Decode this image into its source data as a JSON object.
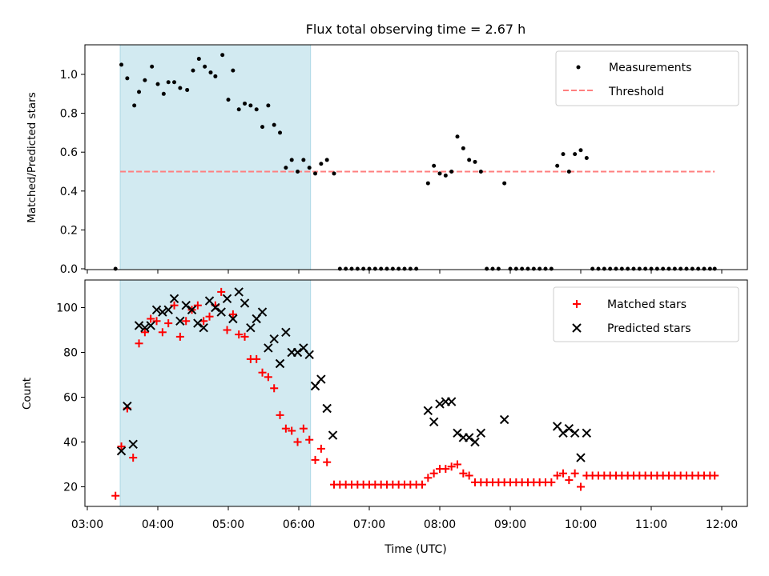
{
  "title": "Flux total observing time = 2.67 h",
  "colors": {
    "shade": "#add8e6",
    "threshold": "#ff7f7f",
    "matched": "#ff0000",
    "predicted": "#000000",
    "measurements": "#000000"
  },
  "chart_data": [
    {
      "type": "scatter",
      "ylabel": "Matched/Predicted stars",
      "xlim": [
        "03:00",
        "12:00"
      ],
      "ylim": [
        0,
        1.15
      ],
      "yticks": [
        "0.0",
        "0.2",
        "0.4",
        "0.6",
        "0.8",
        "1.0"
      ],
      "shaded_span": [
        "03:28",
        "06:10"
      ],
      "legend": {
        "position": "top-right",
        "entries": [
          "Measurements",
          "Threshold"
        ]
      },
      "threshold": {
        "name": "Threshold",
        "value": 0.5,
        "x_range": [
          "03:28",
          "11:54"
        ]
      },
      "series": [
        {
          "name": "Measurements",
          "points": [
            [
              "03:24",
              0.0
            ],
            [
              "03:29",
              1.05
            ],
            [
              "03:34",
              0.98
            ],
            [
              "03:40",
              0.84
            ],
            [
              "03:44",
              0.91
            ],
            [
              "03:49",
              0.97
            ],
            [
              "03:55",
              1.04
            ],
            [
              "04:00",
              0.95
            ],
            [
              "04:05",
              0.9
            ],
            [
              "04:09",
              0.96
            ],
            [
              "04:14",
              0.96
            ],
            [
              "04:19",
              0.93
            ],
            [
              "04:25",
              0.92
            ],
            [
              "04:30",
              1.02
            ],
            [
              "04:35",
              1.08
            ],
            [
              "04:40",
              1.04
            ],
            [
              "04:45",
              1.01
            ],
            [
              "04:49",
              0.99
            ],
            [
              "04:55",
              1.1
            ],
            [
              "05:00",
              0.87
            ],
            [
              "05:04",
              1.02
            ],
            [
              "05:09",
              0.82
            ],
            [
              "05:14",
              0.85
            ],
            [
              "05:19",
              0.84
            ],
            [
              "05:24",
              0.82
            ],
            [
              "05:29",
              0.73
            ],
            [
              "05:34",
              0.84
            ],
            [
              "05:39",
              0.74
            ],
            [
              "05:44",
              0.7
            ],
            [
              "05:49",
              0.52
            ],
            [
              "05:54",
              0.56
            ],
            [
              "05:59",
              0.5
            ],
            [
              "06:04",
              0.56
            ],
            [
              "06:09",
              0.52
            ],
            [
              "06:14",
              0.49
            ],
            [
              "06:19",
              0.54
            ],
            [
              "06:24",
              0.56
            ],
            [
              "06:30",
              0.49
            ],
            [
              "06:35",
              0.0
            ],
            [
              "06:40",
              0.0
            ],
            [
              "06:45",
              0.0
            ],
            [
              "06:50",
              0.0
            ],
            [
              "06:55",
              0.0
            ],
            [
              "07:00",
              0.0
            ],
            [
              "07:05",
              0.0
            ],
            [
              "07:10",
              0.0
            ],
            [
              "07:15",
              0.0
            ],
            [
              "07:20",
              0.0
            ],
            [
              "07:25",
              0.0
            ],
            [
              "07:30",
              0.0
            ],
            [
              "07:35",
              0.0
            ],
            [
              "07:40",
              0.0
            ],
            [
              "07:50",
              0.44
            ],
            [
              "07:55",
              0.53
            ],
            [
              "08:00",
              0.49
            ],
            [
              "08:05",
              0.48
            ],
            [
              "08:10",
              0.5
            ],
            [
              "08:15",
              0.68
            ],
            [
              "08:20",
              0.62
            ],
            [
              "08:25",
              0.56
            ],
            [
              "08:30",
              0.55
            ],
            [
              "08:35",
              0.5
            ],
            [
              "08:40",
              0.0
            ],
            [
              "08:45",
              0.0
            ],
            [
              "08:50",
              0.0
            ],
            [
              "08:55",
              0.44
            ],
            [
              "09:00",
              0.0
            ],
            [
              "09:05",
              0.0
            ],
            [
              "09:10",
              0.0
            ],
            [
              "09:15",
              0.0
            ],
            [
              "09:20",
              0.0
            ],
            [
              "09:25",
              0.0
            ],
            [
              "09:30",
              0.0
            ],
            [
              "09:35",
              0.0
            ],
            [
              "09:40",
              0.53
            ],
            [
              "09:45",
              0.59
            ],
            [
              "09:50",
              0.5
            ],
            [
              "09:55",
              0.59
            ],
            [
              "10:00",
              0.61
            ],
            [
              "10:05",
              0.57
            ],
            [
              "10:10",
              0.0
            ],
            [
              "10:15",
              0.0
            ],
            [
              "10:20",
              0.0
            ],
            [
              "10:25",
              0.0
            ],
            [
              "10:30",
              0.0
            ],
            [
              "10:35",
              0.0
            ],
            [
              "10:40",
              0.0
            ],
            [
              "10:45",
              0.0
            ],
            [
              "10:50",
              0.0
            ],
            [
              "10:55",
              0.0
            ],
            [
              "11:00",
              0.0
            ],
            [
              "11:05",
              0.0
            ],
            [
              "11:10",
              0.0
            ],
            [
              "11:15",
              0.0
            ],
            [
              "11:20",
              0.0
            ],
            [
              "11:25",
              0.0
            ],
            [
              "11:30",
              0.0
            ],
            [
              "11:35",
              0.0
            ],
            [
              "11:40",
              0.0
            ],
            [
              "11:45",
              0.0
            ],
            [
              "11:50",
              0.0
            ],
            [
              "11:54",
              0.0
            ]
          ]
        }
      ]
    },
    {
      "type": "scatter",
      "xlabel": "Time (UTC)",
      "ylabel": "Count",
      "xlim": [
        "03:00",
        "12:00"
      ],
      "ylim": [
        11,
        111
      ],
      "xticks": [
        "03:00",
        "04:00",
        "05:00",
        "06:00",
        "07:00",
        "08:00",
        "09:00",
        "10:00",
        "11:00",
        "12:00"
      ],
      "yticks": [
        "20",
        "40",
        "60",
        "80",
        "100"
      ],
      "shaded_span": [
        "03:28",
        "06:10"
      ],
      "legend": {
        "position": "top-right",
        "entries": [
          "Matched stars",
          "Predicted stars"
        ]
      },
      "series": [
        {
          "name": "Matched stars",
          "points": [
            [
              "03:24",
              16
            ],
            [
              "03:29",
              38
            ],
            [
              "03:34",
              55
            ],
            [
              "03:39",
              33
            ],
            [
              "03:44",
              84
            ],
            [
              "03:49",
              89
            ],
            [
              "03:54",
              95
            ],
            [
              "03:59",
              94
            ],
            [
              "04:04",
              89
            ],
            [
              "04:09",
              93
            ],
            [
              "04:14",
              101
            ],
            [
              "04:19",
              87
            ],
            [
              "04:24",
              94
            ],
            [
              "04:29",
              99
            ],
            [
              "04:34",
              101
            ],
            [
              "04:39",
              94
            ],
            [
              "04:44",
              96
            ],
            [
              "04:49",
              101
            ],
            [
              "04:54",
              107
            ],
            [
              "04:59",
              90
            ],
            [
              "05:04",
              97
            ],
            [
              "05:09",
              88
            ],
            [
              "05:14",
              87
            ],
            [
              "05:19",
              77
            ],
            [
              "05:24",
              77
            ],
            [
              "05:29",
              71
            ],
            [
              "05:34",
              69
            ],
            [
              "05:39",
              64
            ],
            [
              "05:44",
              52
            ],
            [
              "05:49",
              46
            ],
            [
              "05:54",
              45
            ],
            [
              "05:59",
              40
            ],
            [
              "06:04",
              46
            ],
            [
              "06:09",
              41
            ],
            [
              "06:14",
              32
            ],
            [
              "06:19",
              37
            ],
            [
              "06:24",
              31
            ],
            [
              "06:30",
              21
            ],
            [
              "06:35",
              21
            ],
            [
              "06:40",
              21
            ],
            [
              "06:45",
              21
            ],
            [
              "06:50",
              21
            ],
            [
              "06:55",
              21
            ],
            [
              "07:00",
              21
            ],
            [
              "07:05",
              21
            ],
            [
              "07:10",
              21
            ],
            [
              "07:15",
              21
            ],
            [
              "07:20",
              21
            ],
            [
              "07:25",
              21
            ],
            [
              "07:30",
              21
            ],
            [
              "07:35",
              21
            ],
            [
              "07:40",
              21
            ],
            [
              "07:45",
              21
            ],
            [
              "07:50",
              24
            ],
            [
              "07:55",
              26
            ],
            [
              "08:00",
              28
            ],
            [
              "08:05",
              28
            ],
            [
              "08:10",
              29
            ],
            [
              "08:15",
              30
            ],
            [
              "08:20",
              26
            ],
            [
              "08:25",
              25
            ],
            [
              "08:30",
              22
            ],
            [
              "08:35",
              22
            ],
            [
              "08:40",
              22
            ],
            [
              "08:45",
              22
            ],
            [
              "08:50",
              22
            ],
            [
              "08:55",
              22
            ],
            [
              "09:00",
              22
            ],
            [
              "09:05",
              22
            ],
            [
              "09:10",
              22
            ],
            [
              "09:15",
              22
            ],
            [
              "09:20",
              22
            ],
            [
              "09:25",
              22
            ],
            [
              "09:30",
              22
            ],
            [
              "09:35",
              22
            ],
            [
              "09:40",
              25
            ],
            [
              "09:45",
              26
            ],
            [
              "09:50",
              23
            ],
            [
              "09:55",
              26
            ],
            [
              "10:00",
              20
            ],
            [
              "10:05",
              25
            ],
            [
              "10:10",
              25
            ],
            [
              "10:15",
              25
            ],
            [
              "10:20",
              25
            ],
            [
              "10:25",
              25
            ],
            [
              "10:30",
              25
            ],
            [
              "10:35",
              25
            ],
            [
              "10:40",
              25
            ],
            [
              "10:45",
              25
            ],
            [
              "10:50",
              25
            ],
            [
              "10:55",
              25
            ],
            [
              "11:00",
              25
            ],
            [
              "11:05",
              25
            ],
            [
              "11:10",
              25
            ],
            [
              "11:15",
              25
            ],
            [
              "11:20",
              25
            ],
            [
              "11:25",
              25
            ],
            [
              "11:30",
              25
            ],
            [
              "11:35",
              25
            ],
            [
              "11:40",
              25
            ],
            [
              "11:45",
              25
            ],
            [
              "11:50",
              25
            ],
            [
              "11:54",
              25
            ]
          ]
        },
        {
          "name": "Predicted stars",
          "points": [
            [
              "03:29",
              36
            ],
            [
              "03:34",
              56
            ],
            [
              "03:39",
              39
            ],
            [
              "03:44",
              92
            ],
            [
              "03:49",
              91
            ],
            [
              "03:54",
              92
            ],
            [
              "03:59",
              99
            ],
            [
              "04:04",
              98
            ],
            [
              "04:09",
              99
            ],
            [
              "04:14",
              104
            ],
            [
              "04:19",
              94
            ],
            [
              "04:24",
              101
            ],
            [
              "04:29",
              99
            ],
            [
              "04:34",
              93
            ],
            [
              "04:39",
              91
            ],
            [
              "04:44",
              103
            ],
            [
              "04:49",
              100
            ],
            [
              "04:54",
              98
            ],
            [
              "04:59",
              104
            ],
            [
              "05:04",
              95
            ],
            [
              "05:09",
              107
            ],
            [
              "05:14",
              102
            ],
            [
              "05:19",
              91
            ],
            [
              "05:24",
              95
            ],
            [
              "05:29",
              98
            ],
            [
              "05:34",
              82
            ],
            [
              "05:39",
              86
            ],
            [
              "05:44",
              75
            ],
            [
              "05:49",
              89
            ],
            [
              "05:54",
              80
            ],
            [
              "05:59",
              80
            ],
            [
              "06:04",
              82
            ],
            [
              "06:09",
              79
            ],
            [
              "06:14",
              65
            ],
            [
              "06:19",
              68
            ],
            [
              "06:24",
              55
            ],
            [
              "06:29",
              43
            ],
            [
              "07:50",
              54
            ],
            [
              "07:55",
              49
            ],
            [
              "08:00",
              57
            ],
            [
              "08:05",
              58
            ],
            [
              "08:10",
              58
            ],
            [
              "08:15",
              44
            ],
            [
              "08:20",
              42
            ],
            [
              "08:25",
              42
            ],
            [
              "08:30",
              40
            ],
            [
              "08:35",
              44
            ],
            [
              "08:55",
              50
            ],
            [
              "09:40",
              47
            ],
            [
              "09:45",
              44
            ],
            [
              "09:50",
              46
            ],
            [
              "09:55",
              44
            ],
            [
              "10:00",
              33
            ],
            [
              "10:05",
              44
            ]
          ]
        }
      ]
    }
  ]
}
